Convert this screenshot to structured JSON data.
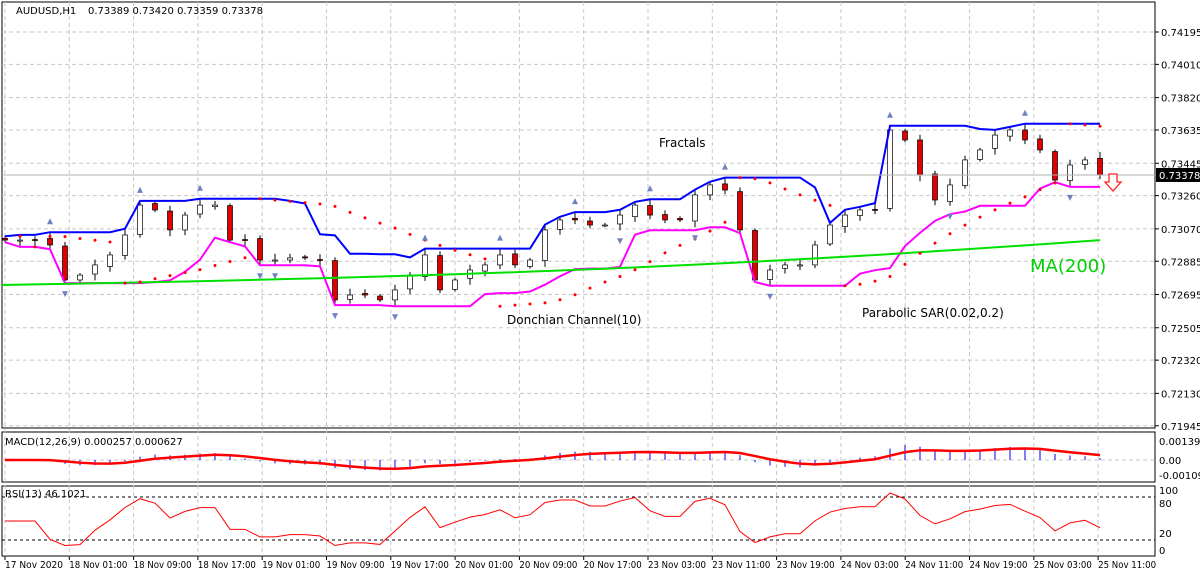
{
  "header": {
    "symbol": "AUDUSD,H1",
    "ohlc": "0.73389 0.73420 0.73359 0.73378"
  },
  "chart_data": {
    "type": "candlestick",
    "symbol": "AUDUSD",
    "timeframe": "H1",
    "y_ticks": [
      "0.74195",
      "0.74010",
      "0.73820",
      "0.73635",
      "0.73445",
      "0.73260",
      "0.73070",
      "0.72885",
      "0.72695",
      "0.72505",
      "0.72320",
      "0.72130",
      "0.71945"
    ],
    "ylim": [
      0.71945,
      0.74195
    ],
    "current_price": "0.73378",
    "x_ticks": [
      "17 Nov 2020",
      "18 Nov 01:00",
      "18 Nov 09:00",
      "18 Nov 17:00",
      "19 Nov 01:00",
      "19 Nov 09:00",
      "19 Nov 17:00",
      "20 Nov 01:00",
      "20 Nov 09:00",
      "20 Nov 17:00",
      "23 Nov 03:00",
      "23 Nov 11:00",
      "23 Nov 19:00",
      "24 Nov 03:00",
      "24 Nov 11:00",
      "24 Nov 19:00",
      "25 Nov 03:00",
      "25 Nov 11:00"
    ],
    "closes": [
      0.73006,
      0.73006,
      0.73006,
      0.72978,
      0.72778,
      0.72806,
      0.72864,
      0.72921,
      0.73035,
      0.73206,
      0.73178,
      0.73064,
      0.73149,
      0.73206,
      0.73206,
      0.73006,
      0.73006,
      0.72892,
      0.72892,
      0.72904,
      0.72904,
      0.72892,
      0.72664,
      0.72692,
      0.72692,
      0.72664,
      0.72721,
      0.72806,
      0.72921,
      0.72721,
      0.72778,
      0.72835,
      0.72864,
      0.72921,
      0.72864,
      0.72892,
      0.73064,
      0.73121,
      0.73121,
      0.73092,
      0.73092,
      0.73149,
      0.73206,
      0.73149,
      0.73121,
      0.73121,
      0.73264,
      0.73321,
      0.73292,
      0.73064,
      0.72778,
      0.72835,
      0.72864,
      0.72864,
      0.72978,
      0.73092,
      0.73149,
      0.73178,
      0.73178,
      0.73635,
      0.73578,
      0.73378,
      0.73235,
      0.73321,
      0.73464,
      0.73521,
      0.73606,
      0.73635,
      0.73578,
      0.73521,
      0.73349,
      0.73435,
      0.73464,
      0.73378
    ],
    "ma200": {
      "name": "MA(200)",
      "start": 0.72749,
      "end": 0.73006
    },
    "indicators": {
      "fractals": "Fractals",
      "donchian": "Donchian Channel(10)",
      "sar": "Parabolic SAR(0.02,0.2)",
      "ma": "MA(200)"
    },
    "signal": "down-arrow",
    "macd": {
      "label": "MACD(12,26,9) 0.000257 0.000627",
      "ticks": [
        "0.00139",
        "0.00",
        "-0.001092"
      ]
    },
    "rsi": {
      "label": "RSI(13) 46.1021",
      "ticks": [
        "100",
        "80",
        "20",
        "0"
      ]
    },
    "colors": {
      "bull": "#ffffff",
      "bear": "#e00000",
      "donchian_upper": "#0000ff",
      "donchian_lower": "#ff00ff",
      "sar": "#ff0000",
      "ma": "#00e000",
      "macd_line": "#ff0000",
      "macd_hist": "#0000ff",
      "rsi": "#ff0000"
    }
  }
}
